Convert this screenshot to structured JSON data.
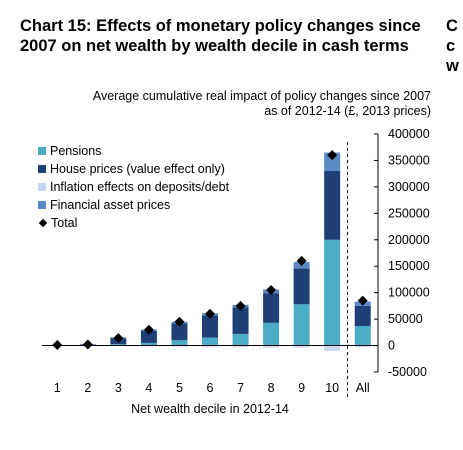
{
  "title": "Chart 15: Effects of monetary policy changes since 2007 on net wealth by wealth decile in cash terms",
  "edge_chars": [
    "C",
    "c",
    "w"
  ],
  "chart_data": {
    "type": "bar",
    "stacked": true,
    "subtitle": "Average cumulative real  impact of policy changes since 2007 as of 2012-14 (£, 2013 prices)",
    "xlabel": "Net wealth decile in 2012-14",
    "categories": [
      "1",
      "2",
      "3",
      "4",
      "5",
      "6",
      "7",
      "8",
      "9",
      "10",
      "All"
    ],
    "ylim": [
      -50000,
      400000
    ],
    "yticks": [
      -50000,
      0,
      50000,
      100000,
      150000,
      200000,
      250000,
      300000,
      350000,
      400000
    ],
    "ytick_labels": [
      "-50000",
      "0",
      "50000",
      "100000",
      "150000",
      "200000",
      "250000",
      "300000",
      "350000",
      "400000"
    ],
    "legend_position": "top-left",
    "series": [
      {
        "name": "Pensions",
        "color": "#4bacc6",
        "values": [
          300,
          500,
          3000,
          5000,
          10000,
          15000,
          22000,
          43000,
          78000,
          200000,
          37000
        ]
      },
      {
        "name": "House prices (value effect only)",
        "color": "#1f3f77",
        "values": [
          800,
          1500,
          11000,
          23000,
          32000,
          42000,
          50000,
          56000,
          68000,
          130000,
          38000
        ]
      },
      {
        "name": "Inflation effects on deposits/debt",
        "color": "#c5d9f1",
        "values": [
          0,
          -300,
          -1000,
          -1500,
          -2000,
          -2500,
          -3000,
          -3500,
          -4000,
          -10000,
          -3000
        ]
      },
      {
        "name": "Financial asset prices",
        "color": "#5a8ac6",
        "values": [
          200,
          300,
          1500,
          2500,
          3000,
          4000,
          5000,
          7000,
          12000,
          35000,
          8000
        ]
      }
    ],
    "total": {
      "name": "Total",
      "marker": "diamond",
      "color": "#000000",
      "values": [
        1000,
        2000,
        14000,
        30000,
        45000,
        60000,
        75000,
        105000,
        160000,
        360000,
        85000
      ]
    }
  }
}
